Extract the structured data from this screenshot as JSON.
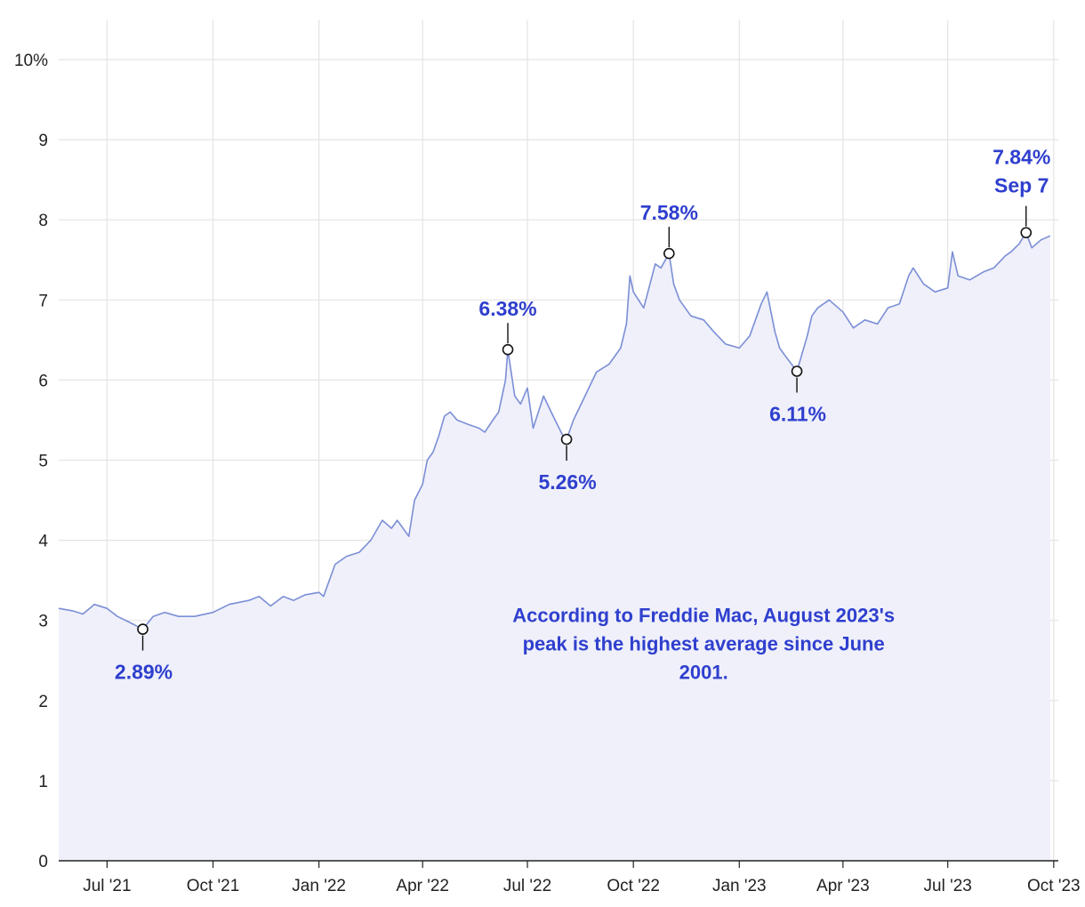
{
  "chart_data": {
    "type": "area",
    "title": "",
    "xlabel": "",
    "ylabel": "",
    "y_unit": "%",
    "ylim": [
      0,
      10
    ],
    "y_ticks": [
      0,
      1,
      2,
      3,
      4,
      5,
      6,
      7,
      8,
      9,
      10
    ],
    "y_tick_labels": [
      "0",
      "1",
      "2",
      "3",
      "4",
      "5",
      "6",
      "7",
      "8",
      "9",
      "10%"
    ],
    "xlim": [
      "2021-05-20",
      "2023-10-05"
    ],
    "x_ticks": [
      "2021-07-01",
      "2021-10-01",
      "2022-01-01",
      "2022-04-01",
      "2022-07-01",
      "2022-10-01",
      "2023-01-01",
      "2023-04-01",
      "2023-07-01",
      "2023-10-01"
    ],
    "x_tick_labels": [
      "Jul '21",
      "Oct '21",
      "Jan '22",
      "Apr '22",
      "Jul '22",
      "Oct '22",
      "Jan '23",
      "Apr '23",
      "Jul '23",
      "Oct '23"
    ],
    "grid": true,
    "colors": {
      "line": "#7b8fd6",
      "fill": "#eff0fa",
      "annotation": "#2f3fce",
      "grid": "#e4e4e4"
    },
    "series": [
      {
        "x": [
          "2021-05-20",
          "2021-06-01",
          "2021-06-10",
          "2021-06-20",
          "2021-07-01",
          "2021-07-10",
          "2021-07-20",
          "2021-08-01",
          "2021-08-10",
          "2021-08-20",
          "2021-09-01",
          "2021-09-15",
          "2021-10-01",
          "2021-10-15",
          "2021-11-01",
          "2021-11-10",
          "2021-11-20",
          "2021-12-01",
          "2021-12-10",
          "2021-12-20",
          "2022-01-01",
          "2022-01-05",
          "2022-01-15",
          "2022-01-25",
          "2022-02-05",
          "2022-02-15",
          "2022-02-25",
          "2022-03-05",
          "2022-03-10",
          "2022-03-20",
          "2022-03-25",
          "2022-04-01",
          "2022-04-05",
          "2022-04-10",
          "2022-04-15",
          "2022-04-20",
          "2022-04-25",
          "2022-05-01",
          "2022-05-10",
          "2022-05-20",
          "2022-05-25",
          "2022-06-01",
          "2022-06-06",
          "2022-06-12",
          "2022-06-14",
          "2022-06-20",
          "2022-06-25",
          "2022-07-01",
          "2022-07-06",
          "2022-07-15",
          "2022-07-25",
          "2022-08-01",
          "2022-08-04",
          "2022-08-10",
          "2022-08-20",
          "2022-08-30",
          "2022-09-10",
          "2022-09-20",
          "2022-09-25",
          "2022-09-28",
          "2022-10-01",
          "2022-10-10",
          "2022-10-20",
          "2022-10-25",
          "2022-11-01",
          "2022-11-05",
          "2022-11-10",
          "2022-11-20",
          "2022-12-01",
          "2022-12-10",
          "2022-12-20",
          "2023-01-01",
          "2023-01-10",
          "2023-01-20",
          "2023-01-25",
          "2023-02-01",
          "2023-02-05",
          "2023-02-10",
          "2023-02-20",
          "2023-03-01",
          "2023-03-05",
          "2023-03-10",
          "2023-03-20",
          "2023-04-01",
          "2023-04-10",
          "2023-04-20",
          "2023-05-01",
          "2023-05-10",
          "2023-05-20",
          "2023-05-28",
          "2023-06-01",
          "2023-06-10",
          "2023-06-20",
          "2023-07-01",
          "2023-07-05",
          "2023-07-10",
          "2023-07-20",
          "2023-08-01",
          "2023-08-10",
          "2023-08-20",
          "2023-08-25",
          "2023-09-01",
          "2023-09-07",
          "2023-09-12",
          "2023-09-20",
          "2023-09-28"
        ],
        "y": [
          3.15,
          3.12,
          3.08,
          3.2,
          3.15,
          3.05,
          2.98,
          2.89,
          3.05,
          3.1,
          3.05,
          3.05,
          3.1,
          3.2,
          3.25,
          3.3,
          3.18,
          3.3,
          3.25,
          3.32,
          3.35,
          3.3,
          3.7,
          3.8,
          3.85,
          4.0,
          4.25,
          4.15,
          4.25,
          4.05,
          4.5,
          4.7,
          5.0,
          5.1,
          5.3,
          5.55,
          5.6,
          5.5,
          5.45,
          5.4,
          5.35,
          5.5,
          5.6,
          6.0,
          6.38,
          5.8,
          5.7,
          5.9,
          5.4,
          5.8,
          5.5,
          5.3,
          5.26,
          5.5,
          5.8,
          6.1,
          6.2,
          6.4,
          6.7,
          7.3,
          7.1,
          6.9,
          7.45,
          7.4,
          7.58,
          7.2,
          7.0,
          6.8,
          6.75,
          6.6,
          6.45,
          6.4,
          6.55,
          6.95,
          7.1,
          6.6,
          6.4,
          6.3,
          6.11,
          6.55,
          6.8,
          6.9,
          7.0,
          6.85,
          6.65,
          6.75,
          6.7,
          6.9,
          6.95,
          7.3,
          7.4,
          7.2,
          7.1,
          7.15,
          7.6,
          7.3,
          7.25,
          7.35,
          7.4,
          7.55,
          7.6,
          7.7,
          7.84,
          7.65,
          7.75,
          7.8
        ]
      }
    ],
    "annotations": [
      {
        "x": "2021-08-01",
        "y": 2.89,
        "label": "2.89%",
        "placement": "below"
      },
      {
        "x": "2022-06-14",
        "y": 6.38,
        "label": "6.38%",
        "placement": "above"
      },
      {
        "x": "2022-08-04",
        "y": 5.26,
        "label": "5.26%",
        "placement": "below"
      },
      {
        "x": "2022-11-01",
        "y": 7.58,
        "label": "7.58%",
        "placement": "above"
      },
      {
        "x": "2023-02-20",
        "y": 6.11,
        "label": "6.11%",
        "placement": "below"
      },
      {
        "x": "2023-09-07",
        "y": 7.84,
        "label": "7.84%",
        "sublabel": "Sep 7",
        "placement": "above"
      }
    ],
    "note": {
      "lines": [
        "According to Freddie Mac, August 2023's",
        "peak is the highest average since June",
        "2001."
      ],
      "x": "2022-12-01",
      "y": 2.98
    }
  }
}
